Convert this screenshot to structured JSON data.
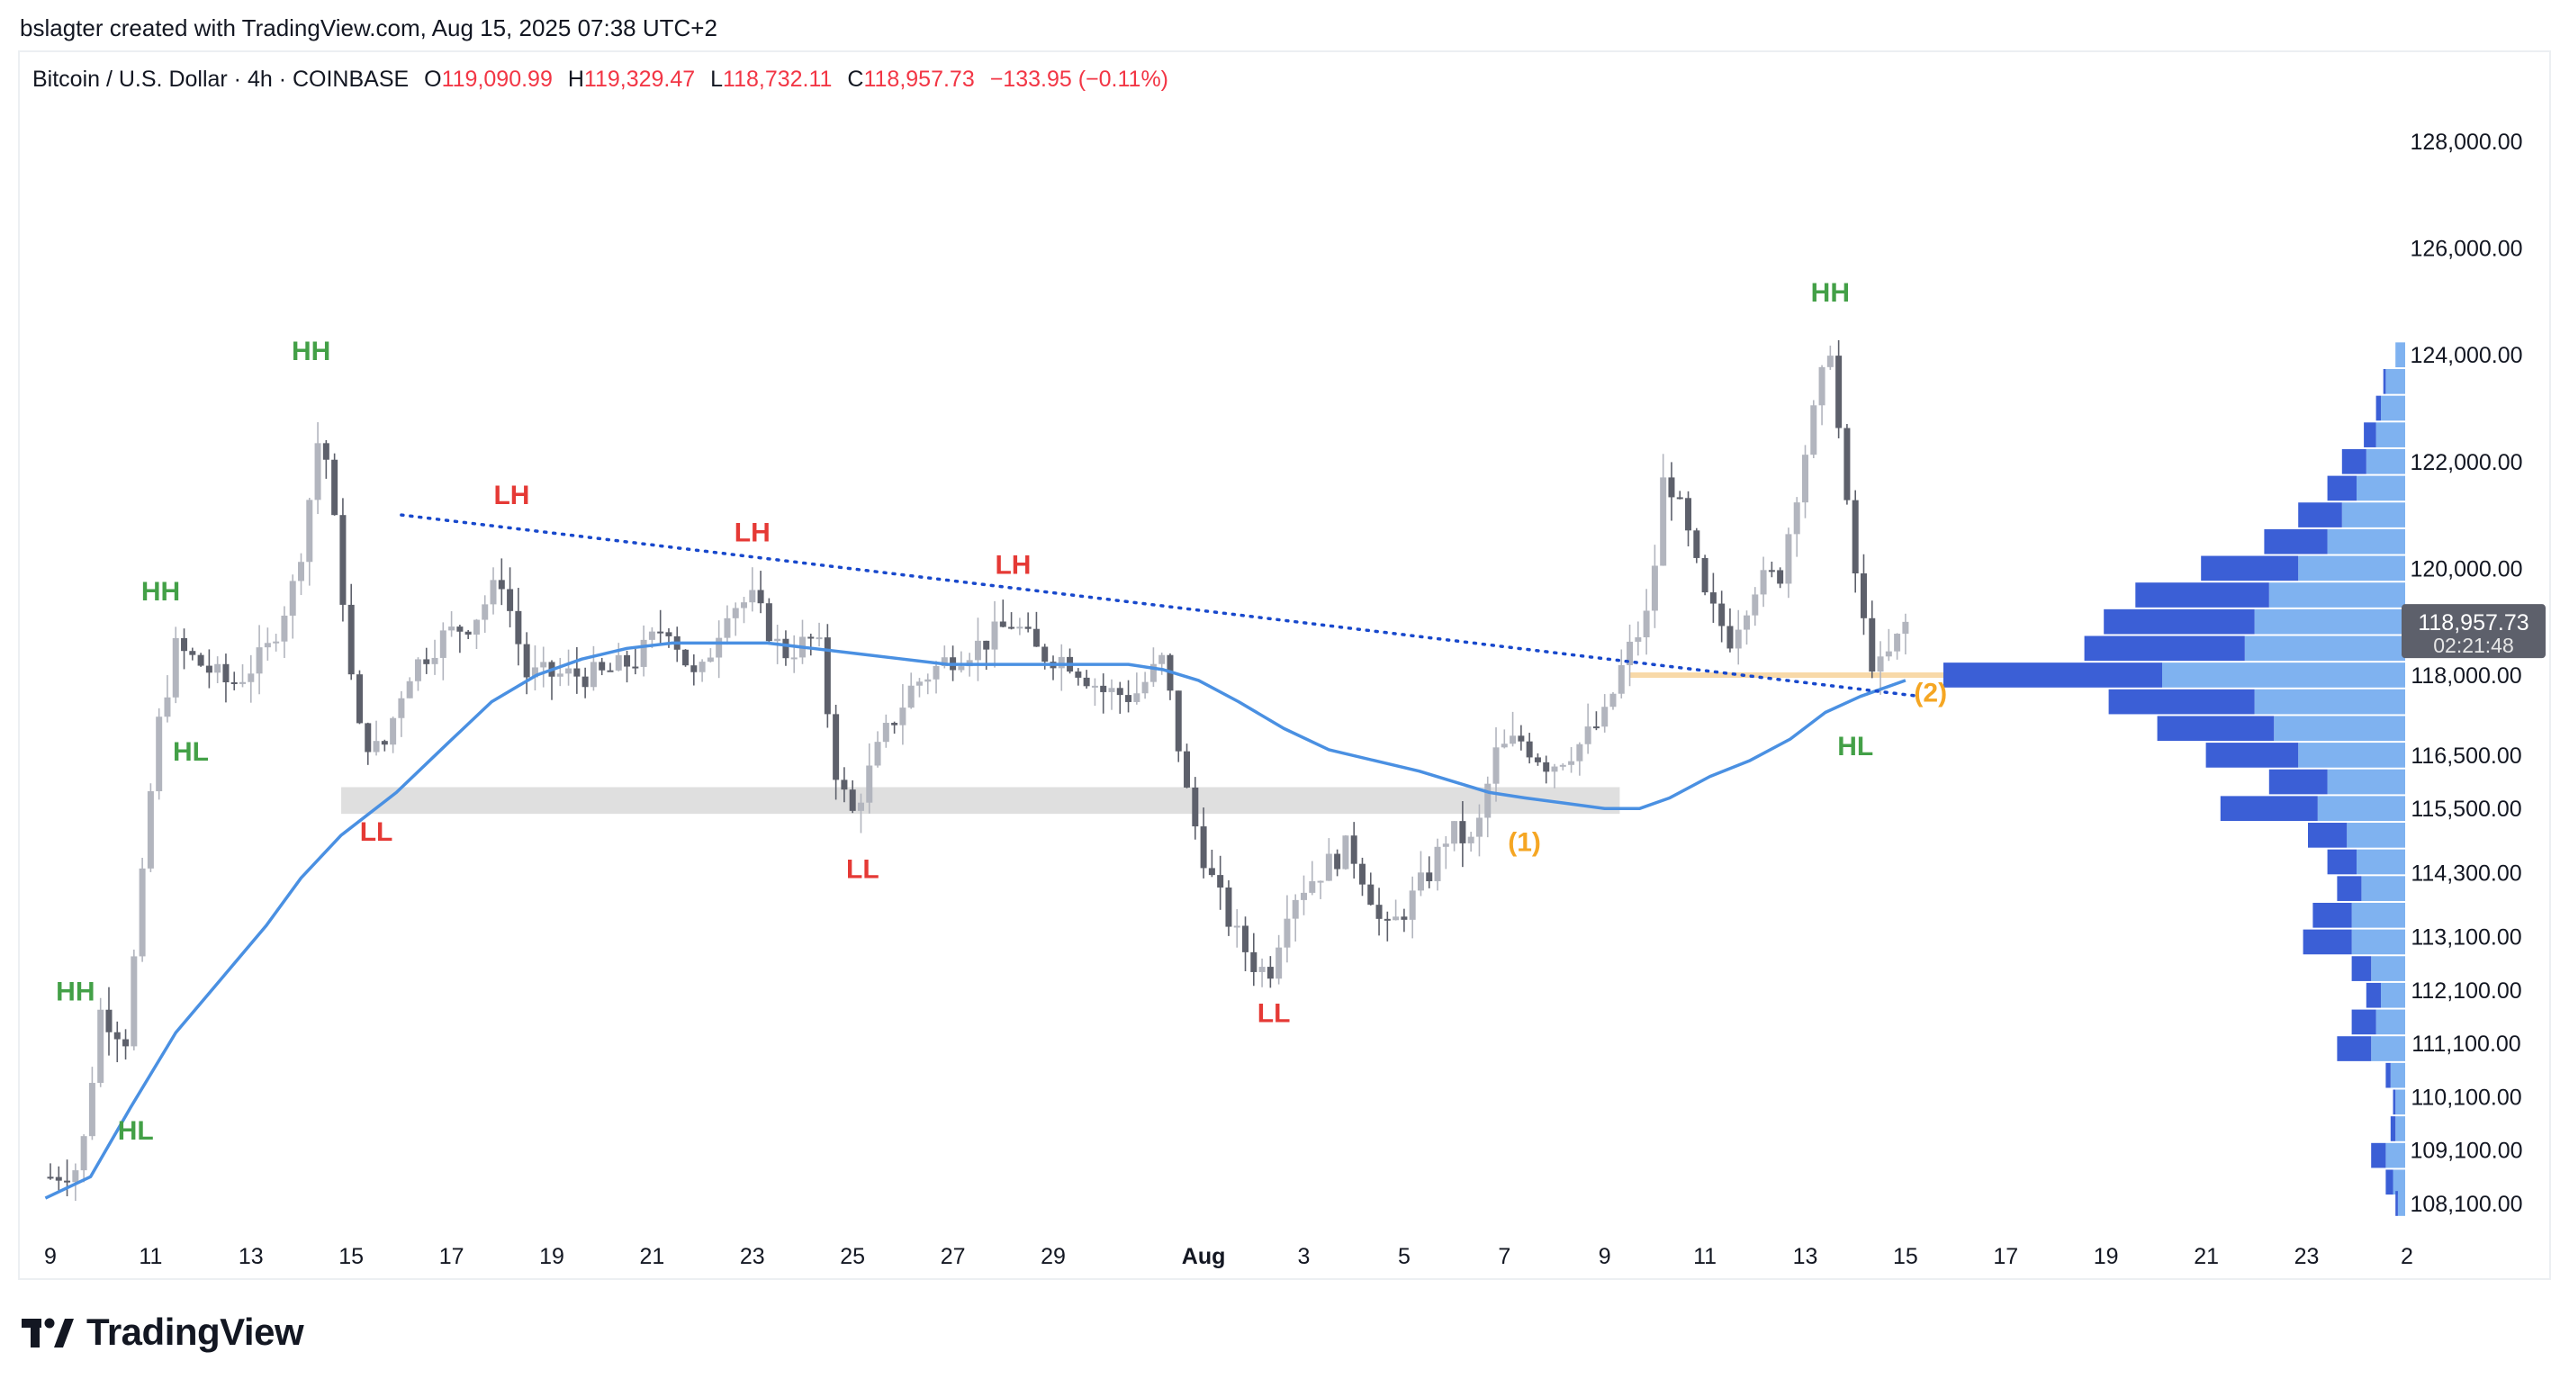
{
  "header": {
    "text": "bslagter created with TradingView.com, Aug 15, 2025 07:38 UTC+2"
  },
  "legend": {
    "symbol": "Bitcoin / U.S. Dollar · 4h · COINBASE",
    "open_key": "O",
    "open": "119,090.99",
    "high_key": "H",
    "high": "119,329.47",
    "low_key": "L",
    "low": "118,732.11",
    "close_key": "C",
    "close": "118,957.73",
    "change": "−133.95 (−0.11%)"
  },
  "price_label": {
    "price": "118,957.73",
    "countdown": "02:21:48"
  },
  "footer": {
    "brand": "TradingView"
  },
  "colors": {
    "up_candle": "#b2b5be",
    "down_candle": "#5d606b",
    "ma_line": "#4a90e2",
    "trendline": "#1848cc",
    "label_green": "#43a047",
    "label_red": "#e53935",
    "label_orange": "#f5a623",
    "support_zone": "#d9d9d9",
    "poc_line": "#f8d9a8",
    "volume_dark": "#3b5fd6",
    "volume_light": "#7fb2f0",
    "price_tag": "#5d606b"
  },
  "chart_data": {
    "type": "candlestick",
    "title": "Bitcoin / U.S. Dollar · 4h · COINBASE",
    "x_axis_labels": [
      "9",
      "11",
      "13",
      "15",
      "17",
      "19",
      "21",
      "23",
      "25",
      "27",
      "29",
      "Aug",
      "3",
      "5",
      "7",
      "9",
      "11",
      "13",
      "15",
      "17",
      "19",
      "21",
      "23",
      "2"
    ],
    "y_axis_labels": [
      "128,000.00",
      "126,000.00",
      "124,000.00",
      "122,000.00",
      "120,000.00",
      "118,000.00",
      "116,500.00",
      "115,500.00",
      "114,300.00",
      "113,100.00",
      "112,100.00",
      "111,100.00",
      "110,100.00",
      "109,100.00",
      "108,100.00"
    ],
    "ylim": [
      107800,
      129000
    ],
    "close_path": [
      {
        "day": 9.0,
        "price": 108600
      },
      {
        "day": 9.6,
        "price": 108800
      },
      {
        "day": 10.0,
        "price": 111700
      },
      {
        "day": 10.5,
        "price": 111200
      },
      {
        "day": 10.8,
        "price": 113800
      },
      {
        "day": 11.1,
        "price": 116800
      },
      {
        "day": 11.5,
        "price": 118500
      },
      {
        "day": 12.0,
        "price": 118200
      },
      {
        "day": 12.6,
        "price": 117800
      },
      {
        "day": 13.3,
        "price": 118400
      },
      {
        "day": 13.9,
        "price": 119800
      },
      {
        "day": 14.2,
        "price": 121500
      },
      {
        "day": 14.4,
        "price": 122800
      },
      {
        "day": 14.8,
        "price": 119800
      },
      {
        "day": 15.1,
        "price": 117000
      },
      {
        "day": 15.6,
        "price": 116500
      },
      {
        "day": 16.1,
        "price": 118000
      },
      {
        "day": 16.8,
        "price": 118700
      },
      {
        "day": 17.4,
        "price": 119000
      },
      {
        "day": 18.0,
        "price": 119800
      },
      {
        "day": 18.5,
        "price": 118000
      },
      {
        "day": 19.1,
        "price": 118000
      },
      {
        "day": 20.0,
        "price": 118000
      },
      {
        "day": 20.7,
        "price": 118300
      },
      {
        "day": 21.3,
        "price": 119000
      },
      {
        "day": 21.9,
        "price": 117800
      },
      {
        "day": 22.5,
        "price": 119300
      },
      {
        "day": 23.0,
        "price": 119400
      },
      {
        "day": 23.6,
        "price": 118400
      },
      {
        "day": 24.3,
        "price": 118700
      },
      {
        "day": 24.7,
        "price": 116000
      },
      {
        "day": 25.0,
        "price": 115400
      },
      {
        "day": 25.6,
        "price": 116800
      },
      {
        "day": 26.2,
        "price": 117800
      },
      {
        "day": 26.9,
        "price": 118300
      },
      {
        "day": 27.6,
        "price": 118600
      },
      {
        "day": 28.2,
        "price": 119000
      },
      {
        "day": 28.7,
        "price": 118400
      },
      {
        "day": 29.3,
        "price": 118300
      },
      {
        "day": 30.0,
        "price": 117700
      },
      {
        "day": 30.6,
        "price": 117600
      },
      {
        "day": 31.2,
        "price": 118300
      },
      {
        "day": 31.7,
        "price": 115600
      },
      {
        "day": 32.1,
        "price": 114300
      },
      {
        "day": 32.6,
        "price": 113200
      },
      {
        "day": 33.0,
        "price": 112600
      },
      {
        "day": 33.3,
        "price": 112400
      },
      {
        "day": 33.7,
        "price": 113800
      },
      {
        "day": 34.3,
        "price": 114300
      },
      {
        "day": 34.9,
        "price": 114800
      },
      {
        "day": 35.3,
        "price": 114000
      },
      {
        "day": 35.6,
        "price": 113100
      },
      {
        "day": 36.0,
        "price": 113600
      },
      {
        "day": 36.5,
        "price": 114300
      },
      {
        "day": 36.9,
        "price": 115100
      },
      {
        "day": 37.4,
        "price": 114800
      },
      {
        "day": 37.8,
        "price": 116500
      },
      {
        "day": 38.3,
        "price": 116800
      },
      {
        "day": 38.9,
        "price": 116300
      },
      {
        "day": 39.5,
        "price": 116700
      },
      {
        "day": 40.0,
        "price": 117200
      },
      {
        "day": 40.4,
        "price": 118300
      },
      {
        "day": 40.9,
        "price": 119200
      },
      {
        "day": 41.2,
        "price": 121900
      },
      {
        "day": 41.6,
        "price": 120800
      },
      {
        "day": 42.0,
        "price": 119400
      },
      {
        "day": 42.5,
        "price": 118700
      },
      {
        "day": 43.0,
        "price": 119700
      },
      {
        "day": 43.5,
        "price": 119900
      },
      {
        "day": 43.9,
        "price": 121800
      },
      {
        "day": 44.3,
        "price": 123400
      },
      {
        "day": 44.5,
        "price": 124200
      },
      {
        "day": 44.8,
        "price": 121300
      },
      {
        "day": 45.1,
        "price": 119200
      },
      {
        "day": 45.4,
        "price": 118000
      },
      {
        "day": 45.7,
        "price": 118400
      },
      {
        "day": 46.0,
        "price": 118957
      }
    ],
    "moving_average": [
      {
        "day": 8.9,
        "price": 108200
      },
      {
        "day": 9.8,
        "price": 108600
      },
      {
        "day": 10.6,
        "price": 109900
      },
      {
        "day": 11.5,
        "price": 111300
      },
      {
        "day": 12.4,
        "price": 112300
      },
      {
        "day": 13.3,
        "price": 113300
      },
      {
        "day": 14.0,
        "price": 114200
      },
      {
        "day": 14.8,
        "price": 115000
      },
      {
        "day": 15.9,
        "price": 115800
      },
      {
        "day": 16.9,
        "price": 116700
      },
      {
        "day": 17.8,
        "price": 117500
      },
      {
        "day": 18.7,
        "price": 118000
      },
      {
        "day": 19.6,
        "price": 118300
      },
      {
        "day": 20.5,
        "price": 118500
      },
      {
        "day": 21.4,
        "price": 118600
      },
      {
        "day": 22.4,
        "price": 118600
      },
      {
        "day": 23.3,
        "price": 118600
      },
      {
        "day": 24.2,
        "price": 118500
      },
      {
        "day": 25.1,
        "price": 118400
      },
      {
        "day": 26.0,
        "price": 118300
      },
      {
        "day": 26.9,
        "price": 118200
      },
      {
        "day": 27.8,
        "price": 118200
      },
      {
        "day": 28.7,
        "price": 118200
      },
      {
        "day": 29.6,
        "price": 118200
      },
      {
        "day": 30.5,
        "price": 118200
      },
      {
        "day": 31.2,
        "price": 118100
      },
      {
        "day": 31.9,
        "price": 117900
      },
      {
        "day": 32.7,
        "price": 117500
      },
      {
        "day": 33.6,
        "price": 117000
      },
      {
        "day": 34.5,
        "price": 116600
      },
      {
        "day": 35.4,
        "price": 116400
      },
      {
        "day": 36.3,
        "price": 116200
      },
      {
        "day": 37.0,
        "price": 116000
      },
      {
        "day": 37.7,
        "price": 115800
      },
      {
        "day": 38.4,
        "price": 115700
      },
      {
        "day": 39.2,
        "price": 115600
      },
      {
        "day": 40.0,
        "price": 115500
      },
      {
        "day": 40.7,
        "price": 115500
      },
      {
        "day": 41.3,
        "price": 115700
      },
      {
        "day": 42.1,
        "price": 116100
      },
      {
        "day": 42.9,
        "price": 116400
      },
      {
        "day": 43.7,
        "price": 116800
      },
      {
        "day": 44.4,
        "price": 117300
      },
      {
        "day": 45.1,
        "price": 117600
      },
      {
        "day": 46.0,
        "price": 117900
      }
    ],
    "trendline": {
      "from": {
        "day": 16.0,
        "price": 121000
      },
      "to": {
        "day": 46.3,
        "price": 117600
      }
    },
    "support_zone": {
      "from_day": 14.8,
      "to_day": 40.3,
      "price_top": 115900,
      "price_bottom": 115400
    },
    "poc_level": {
      "from_day": 40.5,
      "to_day": 56.0,
      "price": 118000
    },
    "annotations": [
      {
        "text": "HH",
        "day": 9.5,
        "price": 111900,
        "color": "green"
      },
      {
        "text": "HL",
        "day": 10.7,
        "price": 109300,
        "color": "green"
      },
      {
        "text": "HH",
        "day": 11.2,
        "price": 119400,
        "color": "green"
      },
      {
        "text": "HL",
        "day": 11.8,
        "price": 116400,
        "color": "green"
      },
      {
        "text": "HH",
        "day": 14.2,
        "price": 123900,
        "color": "green"
      },
      {
        "text": "LL",
        "day": 15.5,
        "price": 114900,
        "color": "red"
      },
      {
        "text": "LH",
        "day": 18.2,
        "price": 121200,
        "color": "red"
      },
      {
        "text": "LH",
        "day": 23.0,
        "price": 120500,
        "color": "red"
      },
      {
        "text": "LL",
        "day": 25.2,
        "price": 114200,
        "color": "red"
      },
      {
        "text": "LH",
        "day": 28.2,
        "price": 119900,
        "color": "red"
      },
      {
        "text": "LL",
        "day": 33.4,
        "price": 111500,
        "color": "red"
      },
      {
        "text": "(1)",
        "day": 38.4,
        "price": 114700,
        "color": "orange"
      },
      {
        "text": "HH",
        "day": 44.5,
        "price": 125000,
        "color": "green"
      },
      {
        "text": "HL",
        "day": 45.0,
        "price": 116500,
        "color": "green"
      },
      {
        "text": "(2)",
        "day": 46.5,
        "price": 117500,
        "color": "orange"
      }
    ],
    "volume_profile": [
      {
        "price": 124000,
        "dark": 0,
        "light": 4
      },
      {
        "price": 123500,
        "dark": 1,
        "light": 8
      },
      {
        "price": 123000,
        "dark": 2,
        "light": 10
      },
      {
        "price": 122500,
        "dark": 5,
        "light": 12
      },
      {
        "price": 122000,
        "dark": 10,
        "light": 16
      },
      {
        "price": 121500,
        "dark": 12,
        "light": 20
      },
      {
        "price": 121000,
        "dark": 18,
        "light": 26
      },
      {
        "price": 120500,
        "dark": 26,
        "light": 32
      },
      {
        "price": 120000,
        "dark": 40,
        "light": 44
      },
      {
        "price": 119500,
        "dark": 55,
        "light": 56
      },
      {
        "price": 119000,
        "dark": 62,
        "light": 62
      },
      {
        "price": 118500,
        "dark": 66,
        "light": 66
      },
      {
        "price": 118000,
        "dark": 90,
        "light": 100
      },
      {
        "price": 117500,
        "dark": 60,
        "light": 62
      },
      {
        "price": 117000,
        "dark": 48,
        "light": 54
      },
      {
        "price": 116500,
        "dark": 38,
        "light": 44
      },
      {
        "price": 116000,
        "dark": 24,
        "light": 32
      },
      {
        "price": 115500,
        "dark": 40,
        "light": 36
      },
      {
        "price": 115000,
        "dark": 16,
        "light": 24
      },
      {
        "price": 114500,
        "dark": 12,
        "light": 20
      },
      {
        "price": 114000,
        "dark": 10,
        "light": 18
      },
      {
        "price": 113500,
        "dark": 16,
        "light": 22
      },
      {
        "price": 113000,
        "dark": 20,
        "light": 22
      },
      {
        "price": 112500,
        "dark": 8,
        "light": 14
      },
      {
        "price": 112000,
        "dark": 6,
        "light": 10
      },
      {
        "price": 111500,
        "dark": 10,
        "light": 12
      },
      {
        "price": 111000,
        "dark": 14,
        "light": 14
      },
      {
        "price": 110500,
        "dark": 2,
        "light": 6
      },
      {
        "price": 110000,
        "dark": 1,
        "light": 4
      },
      {
        "price": 109500,
        "dark": 2,
        "light": 4
      },
      {
        "price": 109000,
        "dark": 6,
        "light": 8
      },
      {
        "price": 108500,
        "dark": 3,
        "light": 5
      },
      {
        "price": 108100,
        "dark": 1,
        "light": 3
      }
    ]
  }
}
